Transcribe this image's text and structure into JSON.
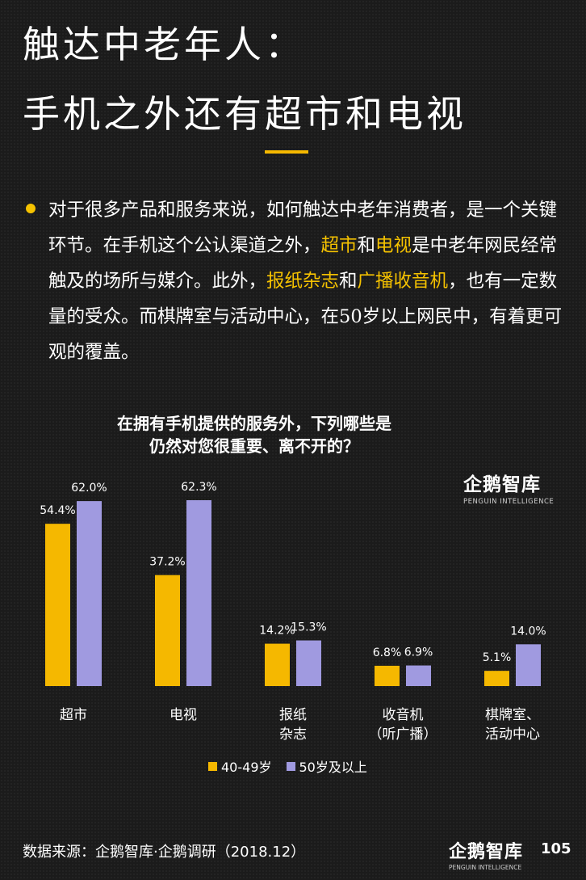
{
  "headline": {
    "line1": "触达中老年人：",
    "line2": "手机之外还有超市和电视"
  },
  "paragraph": [
    {
      "text": "对于很多产品和服务来说，如何触达中老年消费者，是一个关键环节。在手机这个公认渠道之外，",
      "hl": false
    },
    {
      "text": "超市",
      "hl": true
    },
    {
      "text": "和",
      "hl": false
    },
    {
      "text": "电视",
      "hl": true
    },
    {
      "text": "是中老年网民经常触及的场所与媒介。此外，",
      "hl": false
    },
    {
      "text": "报纸杂志",
      "hl": true
    },
    {
      "text": "和",
      "hl": false
    },
    {
      "text": "广播收音机",
      "hl": true
    },
    {
      "text": "，也有一定数量的受众。而棋牌室与活动中心，在50岁以上网民中，有着更可观的覆盖。",
      "hl": false
    }
  ],
  "chart_title": {
    "line1": "在拥有手机提供的服务外，下列哪些是",
    "line2": "仍然对您很重要、离不开的？"
  },
  "logo": {
    "cn": "企鹅智库",
    "en": "PENGUIN INTELLIGENCE"
  },
  "chart_data": {
    "type": "bar",
    "categories": [
      "超市",
      "电视",
      "报纸\n杂志",
      "收音机\n（听广播）",
      "棋牌室、\n活动中心"
    ],
    "series": [
      {
        "name": "40-49岁",
        "color": "#f5b800",
        "values": [
          54.4,
          37.2,
          14.2,
          6.8,
          5.1
        ]
      },
      {
        "name": "50岁及以上",
        "color": "#a09ae0",
        "values": [
          62.0,
          62.3,
          15.3,
          6.9,
          14.0
        ]
      }
    ],
    "value_suffix": "%",
    "ylim": [
      0,
      62.3
    ],
    "grid": false,
    "legend": "bottom"
  },
  "source": "数据来源：企鹅智库·企鹅调研（2018.12）",
  "page_number": "105",
  "colors": {
    "accent": "#f5c200",
    "background": "#1b1b1b"
  }
}
